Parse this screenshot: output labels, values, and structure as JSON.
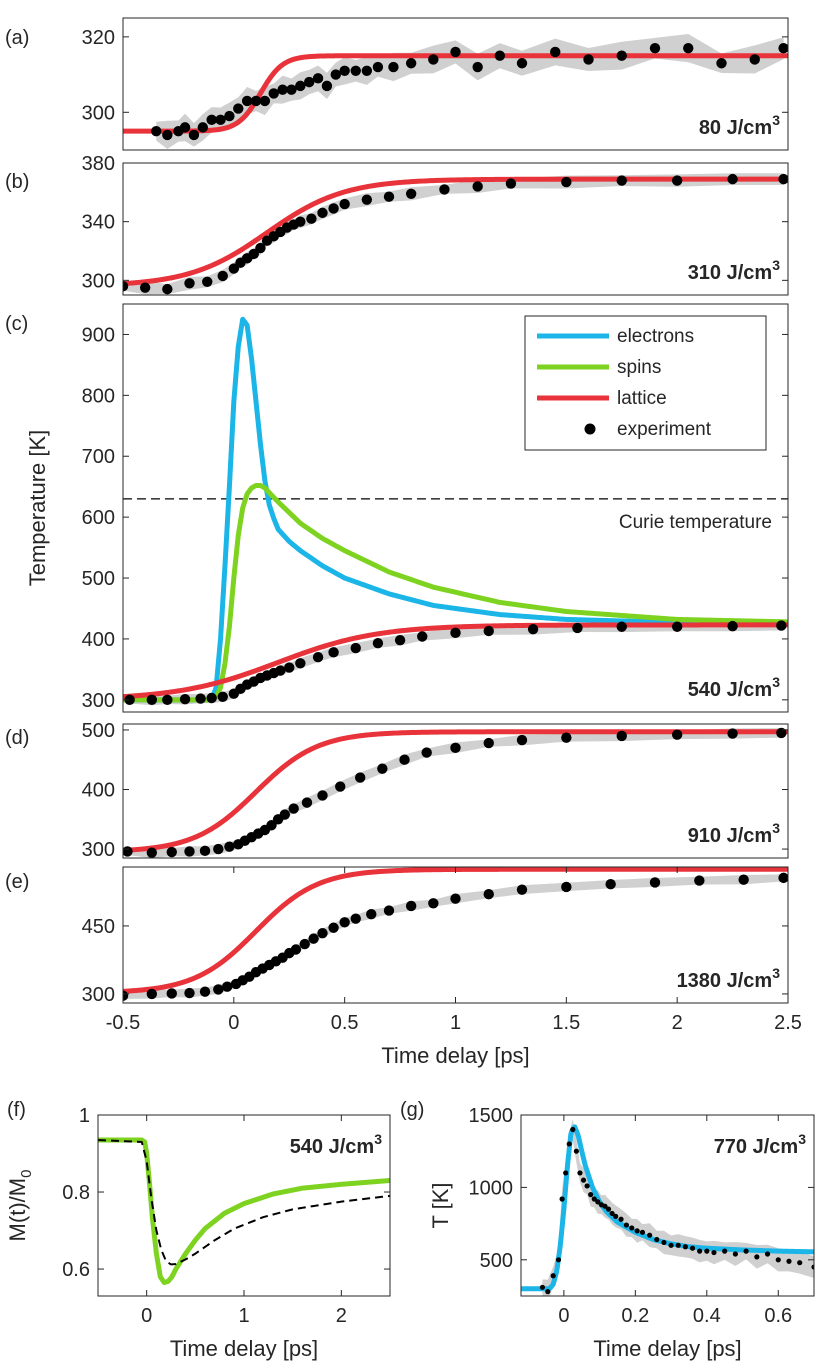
{
  "colors": {
    "electrons": "#1cb5e8",
    "spins": "#7ed321",
    "lattice": "#e8333a",
    "experiment": "#000000",
    "band": "#d0d0d0",
    "dashed": "#000000"
  },
  "chart_data": [
    {
      "panel": "(a)",
      "type": "line",
      "annotation": "80 J/cm",
      "annotation_sup": "3",
      "xlim": [
        -0.5,
        2.5
      ],
      "ylim": [
        290,
        325
      ],
      "yticks": [
        300,
        320
      ],
      "xticks": [],
      "series": [
        {
          "name": "lattice",
          "kind": "sigmoid",
          "base": 295,
          "final": 315,
          "t0": 0.12,
          "tau": 0.1
        },
        {
          "name": "experiment",
          "kind": "points",
          "x": [
            -0.35,
            -0.3,
            -0.25,
            -0.22,
            -0.18,
            -0.14,
            -0.1,
            -0.06,
            -0.02,
            0.02,
            0.06,
            0.1,
            0.14,
            0.18,
            0.22,
            0.26,
            0.3,
            0.34,
            0.38,
            0.42,
            0.46,
            0.5,
            0.55,
            0.6,
            0.65,
            0.72,
            0.8,
            0.9,
            1.0,
            1.1,
            1.2,
            1.3,
            1.45,
            1.6,
            1.75,
            1.9,
            2.05,
            2.2,
            2.35,
            2.48
          ],
          "y": [
            295,
            294,
            295,
            296,
            294,
            296,
            298,
            298,
            299,
            301,
            303,
            303,
            303,
            305,
            306,
            306,
            307,
            308,
            309,
            307,
            310,
            311,
            311,
            311,
            312,
            312,
            313,
            314,
            316,
            312,
            315,
            313,
            316,
            314,
            315,
            317,
            317,
            313,
            314,
            317
          ]
        },
        {
          "name": "band",
          "kind": "band",
          "halfwidth": 2.5
        }
      ]
    },
    {
      "panel": "(b)",
      "type": "line",
      "annotation": "310 J/cm",
      "annotation_sup": "3",
      "xlim": [
        -0.5,
        2.5
      ],
      "ylim": [
        290,
        380
      ],
      "yticks": [
        300,
        340,
        380
      ],
      "xticks": [],
      "series": [
        {
          "name": "lattice",
          "kind": "sigmoid",
          "base": 296,
          "final": 369,
          "t0": 0.15,
          "tau": 0.35
        },
        {
          "name": "experiment",
          "kind": "points",
          "x": [
            -0.5,
            -0.4,
            -0.3,
            -0.2,
            -0.12,
            -0.05,
            0.0,
            0.03,
            0.06,
            0.09,
            0.12,
            0.15,
            0.18,
            0.21,
            0.24,
            0.27,
            0.3,
            0.35,
            0.4,
            0.45,
            0.5,
            0.6,
            0.7,
            0.8,
            0.95,
            1.1,
            1.25,
            1.5,
            1.75,
            2.0,
            2.25,
            2.48
          ],
          "y": [
            296,
            295,
            294,
            298,
            299,
            303,
            308,
            312,
            315,
            318,
            322,
            327,
            330,
            333,
            336,
            338,
            340,
            342,
            346,
            349,
            352,
            355,
            357,
            359,
            362,
            364,
            366,
            367,
            368,
            368,
            369,
            369
          ]
        },
        {
          "name": "band",
          "kind": "band",
          "halfwidth": 3
        }
      ]
    },
    {
      "panel": "(c)",
      "type": "line",
      "annotation": "540 J/cm",
      "annotation_sup": "3",
      "xlim": [
        -0.5,
        2.5
      ],
      "ylim": [
        280,
        950
      ],
      "yticks": [
        300,
        400,
        500,
        600,
        700,
        800,
        900
      ],
      "xticks": [],
      "ylabel": "Temperature [K]",
      "reference_line": {
        "y": 630,
        "label": "Curie temperature"
      },
      "legend": {
        "position": "top-right",
        "entries": [
          "electrons",
          "spins",
          "lattice",
          "experiment"
        ]
      },
      "series": [
        {
          "name": "electrons",
          "kind": "curve",
          "x": [
            -0.5,
            -0.1,
            -0.08,
            -0.06,
            -0.04,
            -0.02,
            0.0,
            0.02,
            0.04,
            0.06,
            0.08,
            0.1,
            0.12,
            0.14,
            0.16,
            0.18,
            0.2,
            0.25,
            0.3,
            0.4,
            0.5,
            0.7,
            0.9,
            1.2,
            1.5,
            2.0,
            2.5
          ],
          "y": [
            300,
            300,
            320,
            400,
            520,
            650,
            790,
            880,
            925,
            915,
            860,
            790,
            720,
            660,
            620,
            598,
            580,
            560,
            545,
            520,
            500,
            474,
            455,
            440,
            432,
            427,
            425
          ]
        },
        {
          "name": "spins",
          "kind": "curve",
          "x": [
            -0.5,
            -0.1,
            -0.08,
            -0.06,
            -0.04,
            -0.02,
            0.0,
            0.02,
            0.04,
            0.06,
            0.08,
            0.1,
            0.12,
            0.14,
            0.16,
            0.2,
            0.3,
            0.4,
            0.5,
            0.7,
            0.9,
            1.2,
            1.5,
            2.0,
            2.5
          ],
          "y": [
            300,
            300,
            305,
            320,
            360,
            420,
            500,
            570,
            615,
            638,
            648,
            652,
            652,
            648,
            640,
            625,
            590,
            565,
            545,
            510,
            485,
            460,
            445,
            432,
            428
          ]
        },
        {
          "name": "lattice",
          "kind": "sigmoid",
          "base": 300,
          "final": 423,
          "t0": 0.2,
          "tau": 0.45
        },
        {
          "name": "experiment",
          "kind": "points",
          "x": [
            -0.47,
            -0.37,
            -0.3,
            -0.22,
            -0.15,
            -0.1,
            -0.05,
            0.0,
            0.03,
            0.06,
            0.09,
            0.12,
            0.15,
            0.18,
            0.21,
            0.25,
            0.3,
            0.38,
            0.45,
            0.55,
            0.65,
            0.75,
            0.85,
            1.0,
            1.15,
            1.35,
            1.55,
            1.75,
            2.0,
            2.25,
            2.47
          ],
          "y": [
            300,
            300,
            300,
            301,
            302,
            303,
            305,
            310,
            318,
            325,
            330,
            336,
            340,
            344,
            348,
            353,
            360,
            370,
            378,
            385,
            393,
            398,
            404,
            410,
            413,
            416,
            418,
            420,
            420,
            421,
            422
          ]
        },
        {
          "name": "band",
          "kind": "band",
          "halfwidth": 6
        }
      ]
    },
    {
      "panel": "(d)",
      "type": "line",
      "annotation": "910 J/cm",
      "annotation_sup": "3",
      "xlim": [
        -0.5,
        2.5
      ],
      "ylim": [
        285,
        510
      ],
      "yticks": [
        300,
        400,
        500
      ],
      "xticks": [],
      "series": [
        {
          "name": "lattice",
          "kind": "sigmoid",
          "base": 295,
          "final": 497,
          "t0": 0.1,
          "tau": 0.28
        },
        {
          "name": "experiment",
          "kind": "points",
          "x": [
            -0.48,
            -0.37,
            -0.28,
            -0.2,
            -0.13,
            -0.07,
            -0.02,
            0.02,
            0.05,
            0.08,
            0.11,
            0.14,
            0.17,
            0.2,
            0.23,
            0.27,
            0.33,
            0.4,
            0.48,
            0.57,
            0.67,
            0.77,
            0.87,
            1.0,
            1.15,
            1.3,
            1.5,
            1.75,
            2.0,
            2.25,
            2.47
          ],
          "y": [
            296,
            294,
            295,
            296,
            297,
            300,
            304,
            308,
            314,
            320,
            326,
            332,
            340,
            350,
            358,
            368,
            378,
            390,
            405,
            420,
            435,
            450,
            462,
            470,
            478,
            483,
            487,
            490,
            492,
            494,
            495
          ]
        },
        {
          "name": "band",
          "kind": "band",
          "halfwidth": 6
        }
      ]
    },
    {
      "panel": "(e)",
      "type": "line",
      "annotation": "1380 J/cm",
      "annotation_sup": "3",
      "xlim": [
        -0.5,
        2.5
      ],
      "ylim": [
        280,
        580
      ],
      "yticks": [
        300,
        450
      ],
      "xticks": [
        -0.5,
        0,
        0.5,
        1,
        1.5,
        2,
        2.5
      ],
      "xticklabels": [
        "-0.5",
        "0",
        "0.5",
        "1",
        "1.5",
        "2",
        "2.5"
      ],
      "xlabel": "Time delay [ps]",
      "series": [
        {
          "name": "lattice",
          "kind": "sigmoid",
          "base": 302,
          "final": 575,
          "t0": 0.1,
          "tau": 0.28
        },
        {
          "name": "experiment",
          "kind": "points",
          "x": [
            -0.5,
            -0.37,
            -0.28,
            -0.2,
            -0.13,
            -0.07,
            -0.03,
            0.01,
            0.04,
            0.07,
            0.1,
            0.13,
            0.16,
            0.19,
            0.22,
            0.25,
            0.28,
            0.32,
            0.36,
            0.4,
            0.45,
            0.5,
            0.55,
            0.62,
            0.7,
            0.8,
            0.9,
            1.0,
            1.15,
            1.3,
            1.5,
            1.7,
            1.9,
            2.1,
            2.3,
            2.48
          ],
          "y": [
            296,
            300,
            301,
            302,
            305,
            310,
            316,
            322,
            330,
            338,
            348,
            356,
            364,
            372,
            380,
            390,
            398,
            410,
            422,
            434,
            446,
            458,
            466,
            476,
            484,
            494,
            500,
            510,
            520,
            530,
            536,
            542,
            546,
            550,
            552,
            556
          ]
        },
        {
          "name": "band",
          "kind": "band",
          "halfwidth": 7
        }
      ]
    },
    {
      "panel": "(f)",
      "type": "line",
      "annotation": "540 J/cm",
      "annotation_sup": "3",
      "xlim": [
        -0.5,
        2.5
      ],
      "ylim": [
        0.53,
        1.0
      ],
      "yticks": [
        0.6,
        0.8,
        1
      ],
      "yticklabels": [
        "0.6",
        "0.8",
        "1"
      ],
      "xticks": [
        0,
        1,
        2
      ],
      "xticklabels": [
        "0",
        "1",
        "2"
      ],
      "ylabel": "M(t)/M",
      "ylabel_sub": "0",
      "xlabel": "Time delay [ps]",
      "series": [
        {
          "name": "spins",
          "kind": "curve",
          "x": [
            -0.5,
            -0.05,
            -0.02,
            0.0,
            0.03,
            0.06,
            0.1,
            0.14,
            0.18,
            0.22,
            0.26,
            0.3,
            0.4,
            0.5,
            0.6,
            0.8,
            1.0,
            1.3,
            1.6,
            2.0,
            2.5
          ],
          "y": [
            0.935,
            0.935,
            0.93,
            0.9,
            0.82,
            0.73,
            0.64,
            0.58,
            0.565,
            0.568,
            0.58,
            0.6,
            0.64,
            0.675,
            0.705,
            0.745,
            0.77,
            0.795,
            0.81,
            0.82,
            0.83
          ]
        },
        {
          "name": "dashed",
          "kind": "curve",
          "dashed": true,
          "x": [
            -0.5,
            -0.05,
            0.0,
            0.05,
            0.1,
            0.15,
            0.2,
            0.25,
            0.3,
            0.4,
            0.5,
            0.7,
            0.9,
            1.2,
            1.5,
            2.0,
            2.5
          ],
          "y": [
            0.935,
            0.93,
            0.88,
            0.78,
            0.7,
            0.65,
            0.62,
            0.612,
            0.613,
            0.625,
            0.64,
            0.675,
            0.705,
            0.735,
            0.755,
            0.775,
            0.79
          ]
        }
      ]
    },
    {
      "panel": "(g)",
      "type": "line",
      "annotation": "770 J/cm",
      "annotation_sup": "3",
      "xlim": [
        -0.12,
        0.7
      ],
      "ylim": [
        250,
        1500
      ],
      "yticks": [
        500,
        1000,
        1500
      ],
      "xticks": [
        0,
        0.2,
        0.4,
        0.6
      ],
      "xticklabels": [
        "0",
        "0.2",
        "0.4",
        "0.6"
      ],
      "ylabel": "T [K]",
      "xlabel": "Time delay [ps]",
      "series": [
        {
          "name": "electrons",
          "kind": "curve",
          "x": [
            -0.12,
            -0.04,
            -0.03,
            -0.02,
            -0.01,
            0.0,
            0.01,
            0.02,
            0.03,
            0.04,
            0.05,
            0.06,
            0.08,
            0.1,
            0.12,
            0.15,
            0.2,
            0.25,
            0.3,
            0.35,
            0.4,
            0.5,
            0.6,
            0.7
          ],
          "y": [
            300,
            300,
            330,
            420,
            600,
            850,
            1150,
            1380,
            1420,
            1360,
            1250,
            1150,
            1000,
            900,
            830,
            760,
            690,
            640,
            610,
            590,
            580,
            568,
            560,
            555
          ]
        },
        {
          "name": "experiment",
          "kind": "points",
          "x": [
            -0.06,
            -0.045,
            -0.03,
            -0.015,
            -0.005,
            0.005,
            0.015,
            0.025,
            0.035,
            0.045,
            0.055,
            0.065,
            0.075,
            0.085,
            0.095,
            0.105,
            0.115,
            0.125,
            0.135,
            0.145,
            0.16,
            0.175,
            0.19,
            0.205,
            0.22,
            0.24,
            0.26,
            0.28,
            0.3,
            0.32,
            0.34,
            0.36,
            0.38,
            0.4,
            0.42,
            0.45,
            0.48,
            0.51,
            0.54,
            0.57,
            0.6,
            0.63,
            0.66,
            0.7
          ],
          "y": [
            310,
            280,
            390,
            500,
            920,
            1100,
            1300,
            1400,
            1250,
            1100,
            1050,
            1010,
            950,
            920,
            900,
            880,
            870,
            850,
            820,
            800,
            780,
            740,
            720,
            700,
            690,
            670,
            640,
            620,
            600,
            600,
            590,
            580,
            560,
            560,
            550,
            560,
            540,
            560,
            520,
            540,
            500,
            490,
            480,
            450
          ]
        },
        {
          "name": "band",
          "kind": "band",
          "halfwidth": 55
        }
      ]
    }
  ],
  "legend_labels": {
    "electrons": "electrons",
    "spins": "spins",
    "lattice": "lattice",
    "experiment": "experiment"
  }
}
